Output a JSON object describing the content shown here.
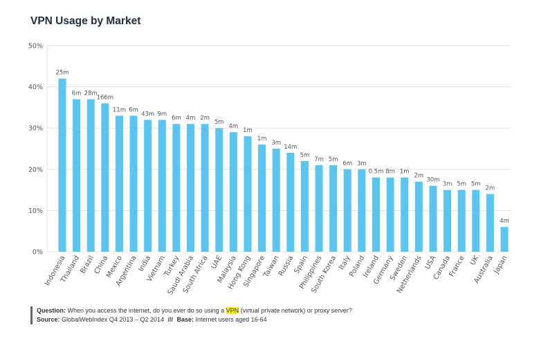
{
  "chart_data": {
    "type": "bar",
    "title": "VPN Usage by Market",
    "xlabel": "",
    "ylabel": "",
    "ylim": [
      0,
      50
    ],
    "yticks": [
      "0%",
      "10%",
      "20%",
      "30%",
      "40%",
      "50%"
    ],
    "y_tick_values": [
      0,
      10,
      20,
      30,
      40,
      50
    ],
    "grid": true,
    "bar_color": "#5bc5f2",
    "categories": [
      "Indonesia",
      "Thailand",
      "Brazil",
      "China",
      "Mexico",
      "Argentina",
      "India",
      "Vietnam",
      "Turkey",
      "Saudi Arabia",
      "South Africa",
      "UAE",
      "Malaysia",
      "Hong Kong",
      "Singapore",
      "Taiwan",
      "Russia",
      "Spain",
      "Philippines",
      "South Korea",
      "Italy",
      "Poland",
      "Ireland",
      "Germany",
      "Sweden",
      "Netherlands",
      "USA",
      "Canada",
      "France",
      "UK",
      "Australia",
      "Japan"
    ],
    "values": [
      42,
      37,
      37,
      36,
      33,
      33,
      32,
      32,
      31,
      31,
      31,
      30,
      29,
      28,
      26,
      25,
      24,
      22,
      21,
      21,
      20,
      20,
      18,
      18,
      18,
      17,
      16,
      15,
      15,
      15,
      14,
      6
    ],
    "data_labels": [
      "25m",
      "6m",
      "28m",
      "166m",
      "11m",
      "6m",
      "43m",
      "9m",
      "6m",
      "4m",
      "2m",
      "5m",
      "4m",
      "1m",
      "1m",
      "3m",
      "14m",
      "5m",
      "7m",
      "5m",
      "6m",
      "3m",
      "0.5m",
      "8m",
      "1m",
      "2m",
      "30m",
      "3m",
      "5m",
      "5m",
      "2m",
      "4m"
    ]
  },
  "notes": {
    "question_label": "Question:",
    "question_pre": "When you access the internet, do you ever do so using a",
    "question_highlight": "VPN",
    "question_post": "(virtual private network) or proxy server?",
    "source_label": "Source:",
    "source_text": "GlobalWebIndex Q4 2013 – Q2 2014",
    "separator": "///",
    "base_label": "Base:",
    "base_text": "Internet users aged 16-64"
  }
}
